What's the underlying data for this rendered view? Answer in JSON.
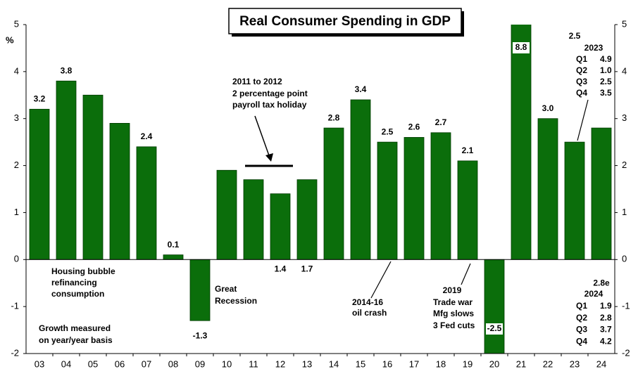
{
  "chart_data": {
    "type": "bar",
    "title": "Real Consumer Spending in GDP",
    "y_label": "%",
    "categories": [
      "03",
      "04",
      "05",
      "06",
      "07",
      "08",
      "09",
      "10",
      "11",
      "12",
      "13",
      "14",
      "15",
      "16",
      "17",
      "18",
      "19",
      "20",
      "21",
      "22",
      "23",
      "24"
    ],
    "values": [
      3.2,
      3.8,
      3.5,
      2.9,
      2.4,
      0.1,
      -1.3,
      1.9,
      1.7,
      1.4,
      1.7,
      2.8,
      3.4,
      2.5,
      2.6,
      2.7,
      2.1,
      -2.5,
      8.8,
      3.0,
      2.5,
      2.8
    ],
    "value_labels": [
      "3.2",
      "3.8",
      null,
      null,
      "2.4",
      "0.1",
      "-1.3",
      null,
      null,
      "1.4",
      "1.7",
      "2.8",
      "3.4",
      "2.5",
      "2.6",
      "2.7",
      "2.1",
      "-2.5",
      "8.8",
      "3.0",
      "2.5",
      "2.8e"
    ],
    "color": "#0b6e0b",
    "ylim": [
      -2,
      5
    ],
    "yticks": [
      -2,
      -1,
      0,
      1,
      2,
      3,
      4,
      5
    ],
    "y2lim": [
      -2,
      5
    ],
    "y2ticks": [
      -2,
      -1,
      0,
      1,
      2,
      3,
      4,
      5
    ],
    "annotations": {
      "tax": [
        "2011 to 2012",
        "2 percentage point",
        "payroll tax holiday"
      ],
      "housing": [
        "Housing bubble",
        "refinancing",
        "consumption"
      ],
      "recession": [
        "Great",
        "Recession"
      ],
      "growth": [
        "Growth measured",
        "on year/year basis"
      ],
      "oil": [
        "2014-16",
        "oil crash"
      ],
      "trade": [
        "2019",
        "Trade war",
        "Mfg slows",
        "3 Fed cuts"
      ],
      "y2023": {
        "year": "2023",
        "quarters": [
          [
            "Q1",
            "4.9"
          ],
          [
            "Q2",
            "1.0"
          ],
          [
            "Q3",
            "2.5"
          ],
          [
            "Q4",
            "3.5"
          ]
        ]
      },
      "y2024": {
        "year": "2024",
        "quarters": [
          [
            "Q1",
            "1.9"
          ],
          [
            "Q2",
            "2.8"
          ],
          [
            "Q3",
            "3.7"
          ],
          [
            "Q4",
            "4.2"
          ]
        ]
      }
    }
  }
}
